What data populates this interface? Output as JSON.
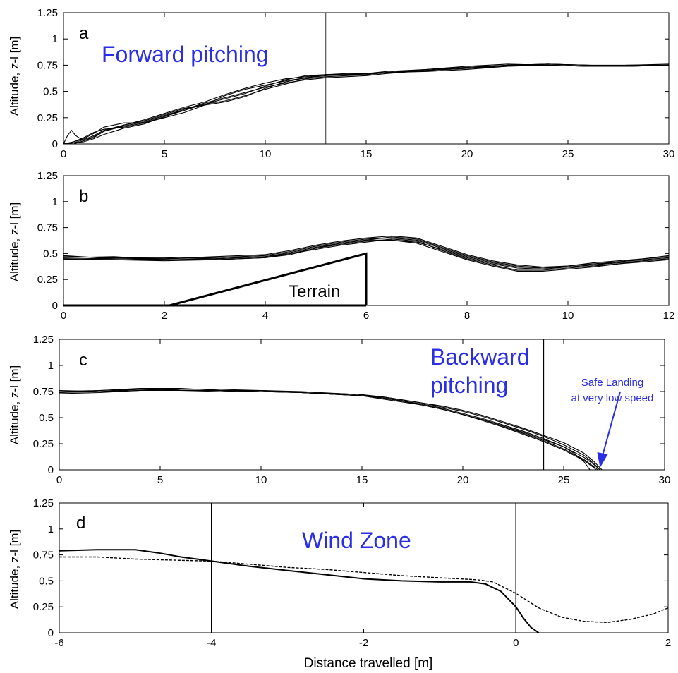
{
  "chart_data": [
    {
      "panel": "a",
      "type": "line",
      "ylabel": "Altitude, z-l [m]",
      "xlim": [
        0,
        30
      ],
      "ylim": [
        0,
        1.25
      ],
      "xticks": [
        "0",
        "5",
        "10",
        "15",
        "20",
        "25",
        "30"
      ],
      "yticks": [
        "0",
        "0.25",
        "0.5",
        "0.75",
        "1",
        "1.25"
      ],
      "annotation": "Forward pitching",
      "vline": 13,
      "series": [
        {
          "x": [
            0,
            0.5,
            1,
            1.5,
            2,
            3,
            4,
            5,
            6,
            7,
            8,
            9,
            10,
            11,
            12,
            13,
            14,
            15,
            16,
            18,
            20,
            22,
            24,
            26,
            28,
            30
          ],
          "y": [
            0,
            0,
            0.03,
            0.07,
            0.12,
            0.17,
            0.21,
            0.27,
            0.33,
            0.39,
            0.44,
            0.49,
            0.54,
            0.58,
            0.61,
            0.63,
            0.64,
            0.65,
            0.67,
            0.7,
            0.73,
            0.75,
            0.75,
            0.74,
            0.74,
            0.75
          ]
        },
        {
          "x": [
            0,
            0.5,
            1,
            1.5,
            2,
            3,
            4,
            5,
            6,
            7,
            8,
            9,
            10,
            11,
            12,
            13,
            14,
            15,
            16,
            18,
            20,
            22,
            24,
            26,
            28,
            30
          ],
          "y": [
            0,
            0.02,
            0.05,
            0.1,
            0.16,
            0.2,
            0.2,
            0.25,
            0.3,
            0.37,
            0.46,
            0.52,
            0.56,
            0.6,
            0.63,
            0.65,
            0.66,
            0.67,
            0.69,
            0.71,
            0.74,
            0.76,
            0.75,
            0.74,
            0.75,
            0.75
          ]
        },
        {
          "x": [
            0,
            0.5,
            1,
            1.5,
            2,
            3,
            4,
            5,
            6,
            7,
            8,
            9,
            10,
            11,
            12,
            13,
            14,
            15,
            16,
            18,
            20,
            22,
            24,
            26,
            28,
            30
          ],
          "y": [
            0,
            0.01,
            0.02,
            0.05,
            0.09,
            0.15,
            0.19,
            0.26,
            0.33,
            0.38,
            0.41,
            0.46,
            0.52,
            0.57,
            0.62,
            0.64,
            0.65,
            0.66,
            0.68,
            0.7,
            0.72,
            0.75,
            0.76,
            0.75,
            0.74,
            0.75
          ]
        },
        {
          "x": [
            0,
            0.2,
            0.4,
            0.6,
            1,
            1.5,
            2,
            3,
            4,
            5,
            6,
            7,
            8,
            9,
            10,
            11,
            12,
            13,
            14,
            15,
            16,
            18,
            20,
            22,
            24,
            26,
            28,
            30
          ],
          "y": [
            0,
            0.08,
            0.13,
            0.08,
            0.03,
            0.06,
            0.12,
            0.18,
            0.22,
            0.28,
            0.34,
            0.37,
            0.4,
            0.45,
            0.53,
            0.59,
            0.63,
            0.66,
            0.67,
            0.67,
            0.68,
            0.69,
            0.71,
            0.74,
            0.76,
            0.75,
            0.74,
            0.75
          ]
        },
        {
          "x": [
            0,
            0.5,
            1,
            1.5,
            2,
            3,
            4,
            5,
            6,
            7,
            8,
            9,
            10,
            11,
            12,
            13,
            14,
            15,
            16,
            18,
            20,
            22,
            24,
            26,
            28,
            30
          ],
          "y": [
            0,
            0.01,
            0.04,
            0.08,
            0.13,
            0.18,
            0.23,
            0.29,
            0.35,
            0.4,
            0.47,
            0.53,
            0.58,
            0.62,
            0.64,
            0.66,
            0.66,
            0.66,
            0.68,
            0.71,
            0.73,
            0.75,
            0.76,
            0.75,
            0.75,
            0.76
          ]
        },
        {
          "x": [
            0,
            0.5,
            1,
            1.5,
            2,
            3,
            4,
            5,
            6,
            7,
            8,
            9,
            10,
            11,
            12,
            13,
            14,
            15,
            16,
            18,
            20,
            22,
            24,
            26,
            28,
            30
          ],
          "y": [
            0,
            0.02,
            0.06,
            0.11,
            0.14,
            0.16,
            0.2,
            0.26,
            0.32,
            0.38,
            0.43,
            0.48,
            0.55,
            0.61,
            0.65,
            0.66,
            0.66,
            0.67,
            0.68,
            0.7,
            0.72,
            0.74,
            0.75,
            0.74,
            0.75,
            0.75
          ]
        }
      ]
    },
    {
      "panel": "b",
      "type": "line",
      "ylabel": "Altitude, z-l [m]",
      "xlim": [
        0,
        12
      ],
      "ylim": [
        0,
        1.25
      ],
      "xticks": [
        "0",
        "2",
        "4",
        "6",
        "8",
        "10",
        "12"
      ],
      "yticks": [
        "0",
        "0.25",
        "0.5",
        "0.75",
        "1",
        "1.25"
      ],
      "annotation": "Terrain",
      "terrain": {
        "x": [
          2.1,
          6,
          6
        ],
        "y": [
          0,
          0.5,
          0
        ]
      },
      "series": [
        {
          "x": [
            0,
            1,
            2,
            3,
            4,
            4.5,
            5,
            5.5,
            6,
            6.5,
            7,
            7.5,
            8,
            8.5,
            9,
            9.5,
            10,
            10.5,
            11,
            11.5,
            12
          ],
          "y": [
            0.45,
            0.45,
            0.44,
            0.44,
            0.46,
            0.5,
            0.55,
            0.59,
            0.62,
            0.63,
            0.61,
            0.54,
            0.46,
            0.4,
            0.36,
            0.35,
            0.37,
            0.39,
            0.41,
            0.43,
            0.45
          ]
        },
        {
          "x": [
            0,
            1,
            2,
            3,
            4,
            4.5,
            5,
            5.5,
            6,
            6.5,
            7,
            7.5,
            8,
            8.5,
            9,
            9.5,
            10,
            10.5,
            11,
            11.5,
            12
          ],
          "y": [
            0.47,
            0.46,
            0.45,
            0.46,
            0.48,
            0.52,
            0.57,
            0.61,
            0.64,
            0.65,
            0.63,
            0.55,
            0.47,
            0.41,
            0.37,
            0.36,
            0.38,
            0.4,
            0.42,
            0.44,
            0.46
          ]
        },
        {
          "x": [
            0,
            1,
            2,
            3,
            4,
            4.5,
            5,
            5.5,
            6,
            6.5,
            7,
            7.5,
            8,
            8.5,
            9,
            9.5,
            10,
            10.5,
            11,
            11.5,
            12
          ],
          "y": [
            0.44,
            0.46,
            0.46,
            0.45,
            0.47,
            0.51,
            0.56,
            0.6,
            0.63,
            0.66,
            0.64,
            0.56,
            0.48,
            0.42,
            0.38,
            0.36,
            0.37,
            0.39,
            0.42,
            0.45,
            0.47
          ]
        },
        {
          "x": [
            0,
            1,
            2,
            3,
            4,
            4.5,
            5,
            5.5,
            6,
            6.5,
            7,
            7.5,
            8,
            8.5,
            9,
            9.5,
            10,
            10.5,
            11,
            11.5,
            12
          ],
          "y": [
            0.46,
            0.47,
            0.44,
            0.45,
            0.47,
            0.5,
            0.54,
            0.58,
            0.61,
            0.64,
            0.62,
            0.53,
            0.45,
            0.39,
            0.34,
            0.34,
            0.36,
            0.38,
            0.4,
            0.42,
            0.44
          ]
        },
        {
          "x": [
            0,
            1,
            2,
            3,
            4,
            4.5,
            5,
            5.5,
            6,
            6.5,
            7,
            7.5,
            8,
            8.5,
            9,
            9.5,
            10,
            10.5,
            11,
            11.5,
            12
          ],
          "y": [
            0.48,
            0.45,
            0.45,
            0.47,
            0.49,
            0.53,
            0.58,
            0.62,
            0.65,
            0.67,
            0.65,
            0.57,
            0.49,
            0.43,
            0.39,
            0.37,
            0.38,
            0.41,
            0.43,
            0.45,
            0.48
          ]
        },
        {
          "x": [
            0,
            1,
            2,
            3,
            4,
            4.5,
            5,
            5.5,
            6,
            6.5,
            7,
            7.5,
            8,
            8.5,
            9,
            9.5,
            10,
            10.5,
            11,
            11.5,
            12
          ],
          "y": [
            0.45,
            0.44,
            0.43,
            0.44,
            0.46,
            0.49,
            0.55,
            0.6,
            0.63,
            0.63,
            0.6,
            0.52,
            0.44,
            0.38,
            0.33,
            0.33,
            0.35,
            0.37,
            0.4,
            0.43,
            0.45
          ]
        }
      ]
    },
    {
      "panel": "c",
      "type": "line",
      "ylabel": "Altitude, z-l [m]",
      "xlim": [
        0,
        30
      ],
      "ylim": [
        0,
        1.25
      ],
      "xticks": [
        "0",
        "5",
        "10",
        "15",
        "20",
        "25",
        "30"
      ],
      "yticks": [
        "0",
        "0.25",
        "0.5",
        "0.75",
        "1",
        "1.25"
      ],
      "annotation": [
        "Backward",
        "pitching"
      ],
      "note": [
        "Safe Landing",
        "at very low speed"
      ],
      "vline": 24,
      "series": [
        {
          "x": [
            0,
            2,
            4,
            6,
            8,
            10,
            12,
            14,
            15,
            16,
            17,
            18,
            19,
            20,
            21,
            22,
            23,
            24,
            25,
            26,
            26.5,
            26.8
          ],
          "y": [
            0.74,
            0.75,
            0.77,
            0.76,
            0.76,
            0.75,
            0.74,
            0.72,
            0.71,
            0.69,
            0.66,
            0.63,
            0.59,
            0.54,
            0.49,
            0.43,
            0.37,
            0.3,
            0.22,
            0.12,
            0.05,
            0
          ]
        },
        {
          "x": [
            0,
            2,
            4,
            6,
            8,
            10,
            12,
            14,
            15,
            16,
            17,
            18,
            19,
            20,
            21,
            22,
            23,
            24,
            25,
            26,
            26.5,
            26.7
          ],
          "y": [
            0.75,
            0.76,
            0.78,
            0.78,
            0.76,
            0.75,
            0.74,
            0.72,
            0.71,
            0.68,
            0.65,
            0.62,
            0.58,
            0.53,
            0.48,
            0.42,
            0.35,
            0.28,
            0.2,
            0.1,
            0.03,
            0
          ]
        },
        {
          "x": [
            0,
            2,
            4,
            6,
            8,
            10,
            12,
            14,
            15,
            16,
            17,
            18,
            19,
            20,
            21,
            22,
            23,
            24,
            25,
            26,
            26.5,
            26.8
          ],
          "y": [
            0.73,
            0.74,
            0.76,
            0.77,
            0.77,
            0.76,
            0.74,
            0.72,
            0.71,
            0.7,
            0.67,
            0.64,
            0.6,
            0.56,
            0.51,
            0.45,
            0.39,
            0.32,
            0.24,
            0.14,
            0.06,
            0
          ]
        },
        {
          "x": [
            0,
            2,
            4,
            6,
            8,
            10,
            12,
            14,
            15,
            16,
            17,
            18,
            19,
            20,
            21,
            22,
            23,
            24,
            25,
            26,
            26.5,
            26.6
          ],
          "y": [
            0.76,
            0.75,
            0.76,
            0.76,
            0.76,
            0.76,
            0.74,
            0.73,
            0.72,
            0.69,
            0.66,
            0.62,
            0.58,
            0.53,
            0.47,
            0.41,
            0.34,
            0.27,
            0.19,
            0.09,
            0.02,
            0
          ]
        },
        {
          "x": [
            0,
            2,
            4,
            6,
            8,
            10,
            12,
            14,
            15,
            16,
            17,
            18,
            19,
            20,
            21,
            22,
            23,
            24,
            25,
            26,
            26.5,
            26.9
          ],
          "y": [
            0.74,
            0.76,
            0.77,
            0.76,
            0.75,
            0.76,
            0.75,
            0.73,
            0.72,
            0.7,
            0.67,
            0.64,
            0.61,
            0.57,
            0.52,
            0.46,
            0.4,
            0.33,
            0.26,
            0.16,
            0.08,
            0
          ]
        },
        {
          "x": [
            0,
            2,
            4,
            6,
            8,
            10,
            12,
            14,
            15,
            16,
            17,
            18,
            19,
            20,
            21,
            22,
            23,
            24,
            25,
            25.5,
            26,
            26.3
          ],
          "y": [
            0.75,
            0.75,
            0.76,
            0.76,
            0.76,
            0.75,
            0.74,
            0.72,
            0.71,
            0.69,
            0.66,
            0.62,
            0.58,
            0.53,
            0.48,
            0.42,
            0.36,
            0.29,
            0.22,
            0.16,
            0.08,
            0
          ]
        }
      ]
    },
    {
      "panel": "d",
      "type": "line",
      "ylabel": "Altitude, z-l [m]",
      "xlabel": "Distance  travelled  [m]",
      "xlim": [
        -6,
        2
      ],
      "ylim": [
        0,
        1.25
      ],
      "xticks": [
        "-6",
        "-4",
        "-2",
        "0",
        "2"
      ],
      "yticks": [
        "0",
        "0.25",
        "0.5",
        "0.75",
        "1",
        "1.25"
      ],
      "annotation": "Wind Zone",
      "vlines": [
        -4,
        0
      ],
      "series": [
        {
          "style": "solid",
          "x": [
            -6,
            -5.5,
            -5,
            -4.7,
            -4.4,
            -4,
            -3.5,
            -3,
            -2.5,
            -2,
            -1.5,
            -1,
            -0.6,
            -0.4,
            -0.2,
            0,
            0.1,
            0.2,
            0.3
          ],
          "y": [
            0.79,
            0.8,
            0.8,
            0.77,
            0.73,
            0.69,
            0.64,
            0.6,
            0.56,
            0.52,
            0.5,
            0.49,
            0.49,
            0.47,
            0.4,
            0.25,
            0.14,
            0.05,
            0
          ]
        },
        {
          "style": "dashed",
          "x": [
            -6,
            -5.5,
            -5,
            -4.5,
            -4,
            -3.5,
            -3,
            -2.5,
            -2,
            -1.5,
            -1,
            -0.5,
            -0.3,
            0,
            0.3,
            0.6,
            0.9,
            1.2,
            1.5,
            1.8,
            2
          ],
          "y": [
            0.73,
            0.73,
            0.71,
            0.7,
            0.69,
            0.66,
            0.63,
            0.61,
            0.58,
            0.55,
            0.53,
            0.51,
            0.49,
            0.38,
            0.24,
            0.15,
            0.11,
            0.1,
            0.13,
            0.18,
            0.24
          ]
        }
      ]
    }
  ]
}
